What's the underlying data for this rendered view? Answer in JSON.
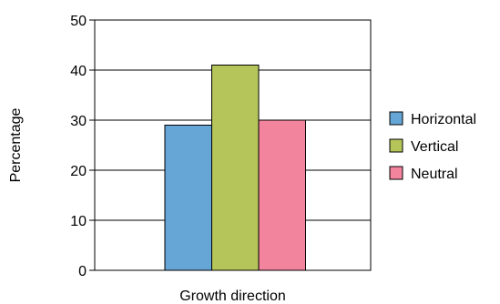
{
  "chart_data": {
    "type": "bar",
    "title": "",
    "xlabel": "Growth direction",
    "ylabel": "Percentage",
    "ylim": [
      0,
      50
    ],
    "yticks": [
      0,
      10,
      20,
      30,
      40,
      50
    ],
    "grid": "horizontal",
    "legend_position": "right",
    "series": [
      {
        "name": "Horizontal",
        "value": 29,
        "color": "#66a6d6"
      },
      {
        "name": "Vertical",
        "value": 41,
        "color": "#b5c55a"
      },
      {
        "name": "Neutral",
        "value": 30,
        "color": "#f2849e"
      }
    ]
  }
}
